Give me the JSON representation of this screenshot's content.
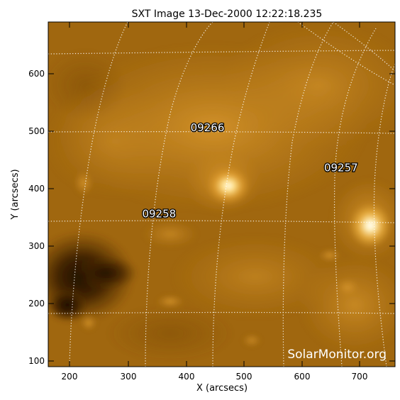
{
  "title": "SXT Image 13-Dec-2000 12:22:18.235",
  "xlabel": "X (arcsecs)",
  "ylabel": "Y (arcsecs)",
  "x_ticks": [
    "200",
    "300",
    "400",
    "500",
    "600",
    "700"
  ],
  "y_ticks": [
    "100",
    "200",
    "300",
    "400",
    "500",
    "600"
  ],
  "x_range": [
    160,
    770
  ],
  "y_range": [
    90,
    690
  ],
  "regions": [
    {
      "number": "09266",
      "x": 440,
      "y": 500
    },
    {
      "number": "09257",
      "x": 675,
      "y": 430
    },
    {
      "number": "09258",
      "x": 355,
      "y": 350
    }
  ],
  "watermark": "SolarMonitor.org",
  "colors": {
    "image_base": "#a0670f",
    "bright": "#ffe7a3",
    "dark": "#1c0d02",
    "grid": "#ffffff"
  }
}
